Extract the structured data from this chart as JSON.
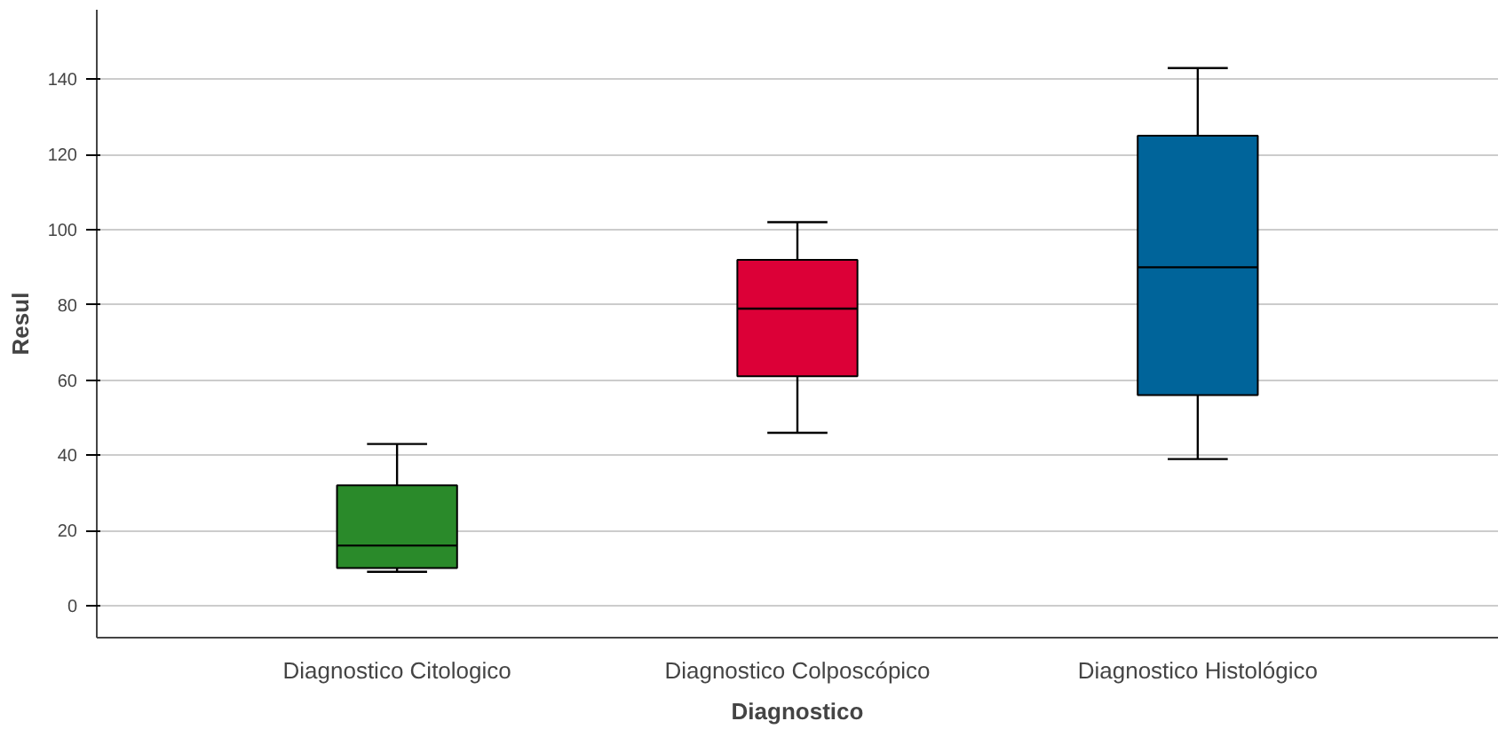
{
  "chart_data": {
    "type": "box",
    "xlabel": "Diagnostico",
    "ylabel": "Resul",
    "categories": [
      "Diagnostico Citologico",
      "Diagnostico Colposcópico",
      "Diagnostico Histológico"
    ],
    "boxes": [
      {
        "low": 9,
        "q1": 10,
        "median": 16,
        "q3": 32,
        "high": 43
      },
      {
        "low": 46,
        "q1": 61,
        "median": 79,
        "q3": 92,
        "high": 102
      },
      {
        "low": 39,
        "q1": 56,
        "median": 90,
        "q3": 125,
        "high": 143
      }
    ],
    "colors": [
      "#2a8a2a",
      "#dc0037",
      "#00649a"
    ],
    "ylim": [
      -8.5,
      158.5
    ],
    "yticks": [
      0,
      20,
      40,
      60,
      80,
      100,
      120,
      140
    ],
    "grid": "y"
  }
}
